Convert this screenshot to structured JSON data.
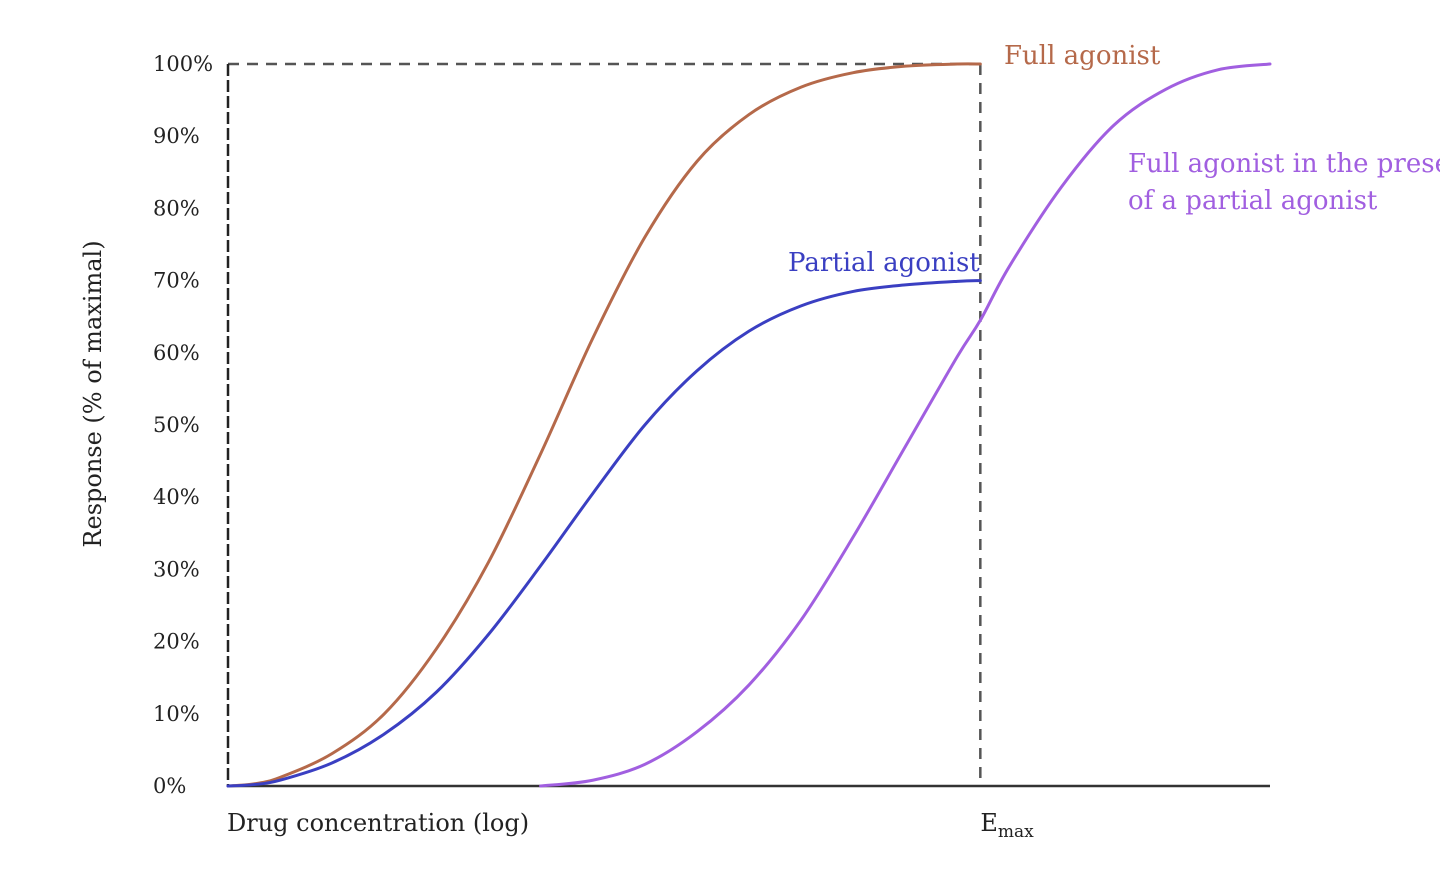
{
  "chart_data": {
    "type": "line",
    "title": "",
    "xlabel": "Drug concentration (log)",
    "ylabel": "Response (% of maximal)",
    "ylim": [
      0,
      100
    ],
    "xlim": [
      0,
      10
    ],
    "grid": false,
    "y_ticks": [
      "0%",
      "10%",
      "20%",
      "30%",
      "40%",
      "50%",
      "60%",
      "70%",
      "80%",
      "90%",
      "100%"
    ],
    "emax_marker": {
      "x": 7.22,
      "label_main": "E",
      "label_sub": "max"
    },
    "reference_line_y": 100,
    "series": [
      {
        "name": "Full agonist",
        "label_lines": [
          "Full agonist"
        ],
        "color": "#b5694a",
        "x": [
          0,
          0.25,
          0.5,
          1.0,
          1.5,
          2.0,
          2.5,
          3.0,
          3.5,
          4.0,
          4.5,
          5.0,
          5.5,
          6.0,
          6.5,
          7.0,
          7.22
        ],
        "y": [
          0,
          0.3,
          1.2,
          4.5,
          10,
          19,
          31,
          46,
          62,
          76,
          86.5,
          93,
          96.8,
          98.8,
          99.7,
          100,
          100
        ]
      },
      {
        "name": "Partial agonist",
        "label_lines": [
          "Partial agonist"
        ],
        "color": "#3a3fc2",
        "x": [
          0,
          0.25,
          0.5,
          1.0,
          1.5,
          2.0,
          2.5,
          3.0,
          3.5,
          4.0,
          4.5,
          5.0,
          5.5,
          6.0,
          6.5,
          7.0,
          7.22
        ],
        "y": [
          0,
          0.2,
          0.8,
          3.2,
          7.2,
          13,
          21,
          30.5,
          40.5,
          50,
          57.5,
          63,
          66.5,
          68.5,
          69.4,
          69.9,
          70
        ]
      },
      {
        "name": "Full agonist in the presence of a partial agonist",
        "label_lines": [
          "Full agonist in the presence",
          "of a partial agonist"
        ],
        "color": "#a15fe0",
        "x": [
          3.0,
          3.5,
          4.0,
          4.5,
          5.0,
          5.5,
          6.0,
          6.5,
          7.0,
          7.22,
          7.5,
          8.0,
          8.5,
          9.0,
          9.5,
          10.0
        ],
        "y": [
          0,
          0.8,
          3,
          7.5,
          14,
          23,
          34.5,
          47,
          59.5,
          64.5,
          72,
          83,
          91.5,
          96.5,
          99.2,
          100
        ]
      }
    ]
  }
}
